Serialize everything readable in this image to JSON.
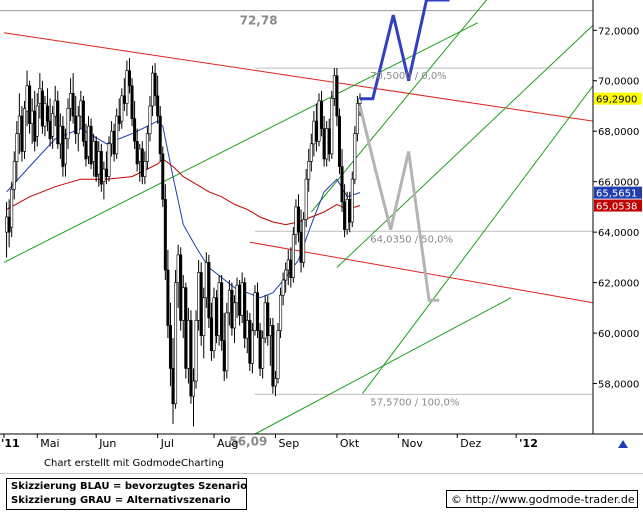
{
  "chart_data": {
    "type": "candlestick",
    "x_tick_labels": [
      "'11",
      "Mai",
      "Jun",
      "Jul",
      "Aug",
      "Sep",
      "Okt",
      "Nov",
      "Dez",
      "'12"
    ],
    "y_ticks": [
      58,
      60,
      62,
      64,
      66,
      68,
      70,
      72
    ],
    "y_tick_labels": [
      "58,0000",
      "60,0000",
      "62,0000",
      "64,0000",
      "66,0000",
      "68,0000",
      "70,0000",
      "72,0000"
    ],
    "ylim": [
      56.0,
      73.2
    ],
    "xlim": [
      0,
      230
    ],
    "grid": false,
    "price_badges": [
      {
        "label": "69,2900",
        "value": 69.29,
        "color": "#ffff00",
        "text_color": "#000000"
      },
      {
        "label": "65,5651",
        "value": 65.5651,
        "color": "#1f3fb0",
        "text_color": "#ffffff"
      },
      {
        "label": "65,0538",
        "value": 65.0538,
        "color": "#c00000",
        "text_color": "#ffffff"
      }
    ],
    "annotations": [
      {
        "text": "72,78",
        "x": 92,
        "y": 72.78
      },
      {
        "text": "56,09",
        "x": 88,
        "y": 56.09
      },
      {
        "text": "70,5000 / 0,0%",
        "x": 143,
        "y": 70.5
      },
      {
        "text": "64,0350 / 50,0%",
        "x": 143,
        "y": 64.035
      },
      {
        "text": "57,5700 / 100,0%",
        "x": 143,
        "y": 57.57
      }
    ],
    "horizontal_levels": [
      72.78,
      70.5,
      64.035,
      57.57
    ],
    "candles": [
      [
        1,
        64.0,
        65.2,
        63.0,
        64.6
      ],
      [
        2,
        64.6,
        65.3,
        63.4,
        64.0
      ],
      [
        3,
        64.2,
        66.0,
        63.8,
        65.7
      ],
      [
        4,
        65.7,
        67.2,
        65.3,
        66.8
      ],
      [
        5,
        66.8,
        68.4,
        66.0,
        67.9
      ],
      [
        6,
        67.9,
        69.5,
        67.1,
        68.6
      ],
      [
        7,
        68.6,
        69.0,
        66.8,
        67.2
      ],
      [
        8,
        67.2,
        69.2,
        66.9,
        68.9
      ],
      [
        9,
        68.8,
        70.4,
        68.2,
        69.8
      ],
      [
        10,
        69.8,
        70.0,
        67.9,
        68.3
      ],
      [
        11,
        68.3,
        69.3,
        67.5,
        68.8
      ],
      [
        12,
        68.8,
        69.6,
        67.2,
        67.6
      ],
      [
        13,
        67.8,
        69.5,
        67.4,
        69.0
      ],
      [
        14,
        69.1,
        70.3,
        68.5,
        69.7
      ],
      [
        15,
        69.6,
        70.0,
        67.9,
        68.2
      ],
      [
        16,
        68.2,
        69.4,
        67.8,
        69.1
      ],
      [
        17,
        69.0,
        69.7,
        68.0,
        68.4
      ],
      [
        18,
        68.4,
        69.3,
        67.4,
        67.7
      ],
      [
        19,
        67.8,
        69.0,
        67.3,
        68.7
      ],
      [
        20,
        68.6,
        69.8,
        68.2,
        69.2
      ],
      [
        21,
        69.2,
        69.6,
        67.3,
        67.5
      ],
      [
        22,
        67.5,
        68.7,
        66.9,
        68.2
      ],
      [
        23,
        68.2,
        68.6,
        66.2,
        66.6
      ],
      [
        24,
        66.7,
        68.1,
        66.2,
        67.7
      ],
      [
        25,
        67.7,
        69.3,
        67.3,
        68.9
      ],
      [
        26,
        68.9,
        70.1,
        68.4,
        69.5
      ],
      [
        27,
        69.5,
        70.3,
        68.3,
        68.6
      ],
      [
        28,
        68.6,
        69.4,
        67.5,
        67.9
      ],
      [
        29,
        67.9,
        69.0,
        67.2,
        68.6
      ],
      [
        30,
        68.6,
        69.6,
        68.1,
        69.2
      ],
      [
        31,
        69.2,
        69.4,
        67.4,
        67.6
      ],
      [
        32,
        67.6,
        68.3,
        66.6,
        66.9
      ],
      [
        33,
        67.0,
        68.6,
        66.7,
        68.2
      ],
      [
        34,
        68.2,
        68.5,
        66.5,
        66.7
      ],
      [
        35,
        66.8,
        67.9,
        66.2,
        67.6
      ],
      [
        36,
        67.6,
        67.8,
        66.0,
        66.2
      ],
      [
        37,
        66.3,
        67.6,
        65.8,
        67.2
      ],
      [
        38,
        67.2,
        67.5,
        65.6,
        65.9
      ],
      [
        39,
        66.0,
        66.8,
        65.3,
        66.5
      ],
      [
        40,
        66.5,
        67.2,
        65.9,
        66.2
      ],
      [
        41,
        66.2,
        67.8,
        66.0,
        67.5
      ],
      [
        42,
        67.5,
        68.4,
        67.0,
        68.0
      ],
      [
        43,
        68.0,
        68.3,
        66.8,
        67.1
      ],
      [
        44,
        67.1,
        68.9,
        66.9,
        68.6
      ],
      [
        45,
        68.6,
        69.3,
        68.0,
        68.3
      ],
      [
        46,
        68.4,
        69.7,
        68.1,
        69.4
      ],
      [
        47,
        69.4,
        70.1,
        68.8,
        69.1
      ],
      [
        48,
        69.1,
        70.8,
        68.6,
        70.4
      ],
      [
        49,
        70.4,
        70.9,
        69.5,
        69.8
      ],
      [
        50,
        69.8,
        70.1,
        68.2,
        68.5
      ],
      [
        51,
        68.5,
        69.2,
        67.3,
        67.6
      ],
      [
        52,
        67.6,
        68.1,
        66.4,
        66.7
      ],
      [
        53,
        66.8,
        67.5,
        66.0,
        67.3
      ],
      [
        54,
        67.3,
        67.6,
        65.9,
        66.2
      ],
      [
        55,
        66.2,
        67.2,
        65.9,
        66.8
      ],
      [
        56,
        66.8,
        68.2,
        66.5,
        67.9
      ],
      [
        57,
        67.9,
        69.4,
        67.6,
        69.0
      ],
      [
        58,
        69.0,
        70.6,
        68.6,
        70.3
      ],
      [
        59,
        70.3,
        70.7,
        69.0,
        69.4
      ],
      [
        60,
        69.4,
        70.2,
        68.3,
        68.6
      ],
      [
        61,
        68.6,
        69.0,
        66.8,
        67.1
      ],
      [
        62,
        67.1,
        67.4,
        65.0,
        65.3
      ],
      [
        63,
        65.3,
        65.9,
        62.1,
        62.5
      ],
      [
        64,
        62.5,
        63.3,
        59.8,
        60.3
      ],
      [
        65,
        60.3,
        61.2,
        57.9,
        58.6
      ],
      [
        66,
        58.6,
        59.8,
        56.4,
        57.2
      ],
      [
        67,
        57.2,
        62.5,
        57.0,
        62.0
      ],
      [
        68,
        62.0,
        63.5,
        61.0,
        63.1
      ],
      [
        69,
        63.1,
        63.4,
        60.1,
        60.5
      ],
      [
        70,
        60.5,
        62.3,
        59.8,
        61.8
      ],
      [
        71,
        61.8,
        62.0,
        58.2,
        58.6
      ],
      [
        72,
        58.6,
        61.0,
        58.0,
        60.5
      ],
      [
        73,
        60.5,
        60.9,
        57.2,
        57.5
      ],
      [
        74,
        57.5,
        58.6,
        56.3,
        58.1
      ],
      [
        75,
        58.1,
        60.9,
        57.8,
        60.5
      ],
      [
        76,
        60.5,
        62.9,
        60.1,
        62.4
      ],
      [
        77,
        62.4,
        62.8,
        59.5,
        59.9
      ],
      [
        78,
        59.9,
        61.8,
        59.0,
        61.4
      ],
      [
        79,
        61.4,
        63.2,
        61.0,
        62.8
      ],
      [
        80,
        62.8,
        63.1,
        60.2,
        60.6
      ],
      [
        81,
        60.6,
        61.2,
        58.9,
        59.3
      ],
      [
        82,
        59.3,
        61.8,
        59.0,
        61.4
      ],
      [
        83,
        61.4,
        61.7,
        59.6,
        59.9
      ],
      [
        84,
        59.9,
        62.3,
        59.5,
        62.0
      ],
      [
        85,
        62.0,
        62.3,
        59.3,
        59.7
      ],
      [
        86,
        59.7,
        60.8,
        58.1,
        58.5
      ],
      [
        87,
        58.5,
        61.2,
        58.2,
        60.8
      ],
      [
        88,
        60.8,
        62.1,
        60.3,
        61.7
      ],
      [
        89,
        61.7,
        62.0,
        59.9,
        60.2
      ],
      [
        90,
        60.2,
        61.5,
        59.6,
        61.2
      ],
      [
        91,
        61.2,
        62.2,
        60.6,
        61.9
      ],
      [
        92,
        61.9,
        62.1,
        60.3,
        60.7
      ],
      [
        93,
        60.7,
        62.4,
        60.4,
        62.0
      ],
      [
        94,
        62.0,
        62.2,
        59.4,
        59.8
      ],
      [
        95,
        59.8,
        60.9,
        59.2,
        60.5
      ],
      [
        96,
        60.5,
        60.8,
        58.5,
        58.8
      ],
      [
        97,
        58.8,
        60.4,
        58.4,
        60.1
      ],
      [
        98,
        60.1,
        61.9,
        59.9,
        61.6
      ],
      [
        99,
        61.6,
        62.0,
        59.8,
        60.1
      ],
      [
        100,
        60.1,
        60.4,
        58.3,
        58.6
      ],
      [
        101,
        58.6,
        60.1,
        58.2,
        59.8
      ],
      [
        102,
        59.8,
        61.5,
        59.6,
        61.2
      ],
      [
        103,
        61.2,
        61.5,
        59.5,
        59.9
      ],
      [
        104,
        59.9,
        60.6,
        58.7,
        60.3
      ],
      [
        105,
        60.3,
        60.6,
        57.6,
        57.9
      ],
      [
        106,
        57.9,
        58.5,
        57.5,
        58.2
      ],
      [
        107,
        58.2,
        60.4,
        58.0,
        60.1
      ],
      [
        108,
        60.1,
        61.8,
        59.8,
        61.5
      ],
      [
        109,
        61.5,
        62.4,
        61.1,
        62.1
      ],
      [
        110,
        62.1,
        62.8,
        61.6,
        62.5
      ],
      [
        111,
        62.5,
        63.3,
        61.9,
        62.9
      ],
      [
        112,
        62.9,
        63.4,
        61.8,
        62.2
      ],
      [
        113,
        62.2,
        64.2,
        62.0,
        63.9
      ],
      [
        114,
        63.9,
        65.3,
        63.5,
        65.0
      ],
      [
        115,
        65.0,
        65.5,
        63.6,
        64.0
      ],
      [
        116,
        64.0,
        64.9,
        62.4,
        62.8
      ],
      [
        117,
        62.8,
        64.8,
        62.6,
        64.5
      ],
      [
        118,
        64.5,
        66.5,
        64.2,
        66.1
      ],
      [
        119,
        66.1,
        67.3,
        65.6,
        66.8
      ],
      [
        120,
        66.8,
        67.9,
        66.4,
        67.5
      ],
      [
        121,
        67.5,
        68.8,
        67.0,
        68.4
      ],
      [
        122,
        68.4,
        69.1,
        67.2,
        67.6
      ],
      [
        123,
        67.6,
        69.5,
        67.4,
        69.2
      ],
      [
        124,
        69.2,
        69.6,
        67.8,
        68.1
      ],
      [
        125,
        68.1,
        68.6,
        66.6,
        66.9
      ],
      [
        126,
        66.9,
        68.4,
        66.6,
        68.1
      ],
      [
        127,
        68.1,
        68.5,
        66.8,
        67.1
      ],
      [
        128,
        67.1,
        69.6,
        66.9,
        69.3
      ],
      [
        129,
        69.3,
        70.5,
        69.0,
        70.2
      ],
      [
        130,
        70.2,
        70.5,
        68.2,
        68.6
      ],
      [
        131,
        68.6,
        68.9,
        66.3,
        66.6
      ],
      [
        132,
        66.6,
        67.3,
        64.8,
        65.2
      ],
      [
        133,
        65.2,
        65.9,
        63.8,
        64.1
      ],
      [
        134,
        64.1,
        65.6,
        63.9,
        65.3
      ],
      [
        135,
        65.3,
        65.6,
        64.0,
        64.4
      ],
      [
        136,
        64.4,
        66.4,
        64.2,
        66.1
      ],
      [
        137,
        66.1,
        68.2,
        65.9,
        67.9
      ],
      [
        138,
        67.9,
        69.4,
        67.6,
        69.1
      ],
      [
        139,
        69.1,
        69.5,
        68.6,
        69.29
      ]
    ],
    "series": [
      {
        "name": "",
        "color": "#1f3fb0",
        "x": [
          1,
          10,
          20,
          30,
          40,
          50,
          60,
          62,
          66,
          70,
          75,
          80,
          85,
          90,
          95,
          100,
          105,
          110,
          115,
          120,
          125,
          130,
          134,
          139
        ],
        "values": [
          65.6,
          66.6,
          67.7,
          68.1,
          67.5,
          67.9,
          68.4,
          68.2,
          66.2,
          64.3,
          63.4,
          62.6,
          62.2,
          61.8,
          61.6,
          61.4,
          61.6,
          62.2,
          62.9,
          64.3,
          65.6,
          66.1,
          65.4,
          65.5651
        ]
      },
      {
        "name": "",
        "color": "#c00000",
        "x": [
          1,
          10,
          20,
          30,
          40,
          50,
          60,
          62,
          66,
          70,
          75,
          80,
          85,
          90,
          95,
          100,
          105,
          110,
          115,
          120,
          125,
          130,
          134,
          139
        ],
        "values": [
          64.9,
          65.4,
          65.8,
          66.1,
          66.1,
          66.2,
          66.7,
          66.9,
          66.6,
          66.2,
          65.9,
          65.6,
          65.4,
          65.1,
          64.9,
          64.6,
          64.4,
          64.3,
          64.4,
          64.6,
          64.8,
          65.1,
          64.9,
          65.0538
        ]
      }
    ],
    "trendlines": [
      {
        "color": "#e02020",
        "x": [
          0,
          230
        ],
        "values": [
          71.9,
          68.4
        ]
      },
      {
        "color": "#e02020",
        "x": [
          96,
          230
        ],
        "values": [
          63.6,
          61.2
        ]
      },
      {
        "color": "#20a020",
        "x": [
          0,
          185
        ],
        "values": [
          62.8,
          72.3
        ]
      },
      {
        "color": "#20a020",
        "x": [
          98,
          198
        ],
        "values": [
          56.0,
          61.4
        ]
      },
      {
        "color": "#20a020",
        "x": [
          130,
          230
        ],
        "values": [
          62.6,
          72.2
        ]
      },
      {
        "color": "#20a020",
        "x": [
          120,
          190
        ],
        "values": [
          64.8,
          73.4
        ]
      },
      {
        "color": "#20a020",
        "x": [
          140,
          230
        ],
        "values": [
          57.6,
          69.8
        ]
      }
    ],
    "scenarios": [
      {
        "name": "BLAU",
        "color": "#3040c0",
        "x": [
          139,
          144,
          152,
          158,
          165,
          170,
          174
        ],
        "values": [
          69.29,
          69.29,
          72.6,
          70.0,
          73.2,
          73.2,
          73.2
        ]
      },
      {
        "name": "GRAU",
        "color": "#b4b4b4",
        "x": [
          139,
          145,
          151,
          158,
          166,
          170
        ],
        "values": [
          69.0,
          66.5,
          64.1,
          67.2,
          61.3,
          61.3
        ]
      }
    ]
  },
  "footer": {
    "credit": "Chart erstellt mit GodmodeCharting",
    "legend_blue": "Skizzierung BLAU = bevorzugtes Szenario",
    "legend_grey": "Skizzierung GRAU = Alternativszenario",
    "url": "© http://www.godmode-trader.de"
  }
}
